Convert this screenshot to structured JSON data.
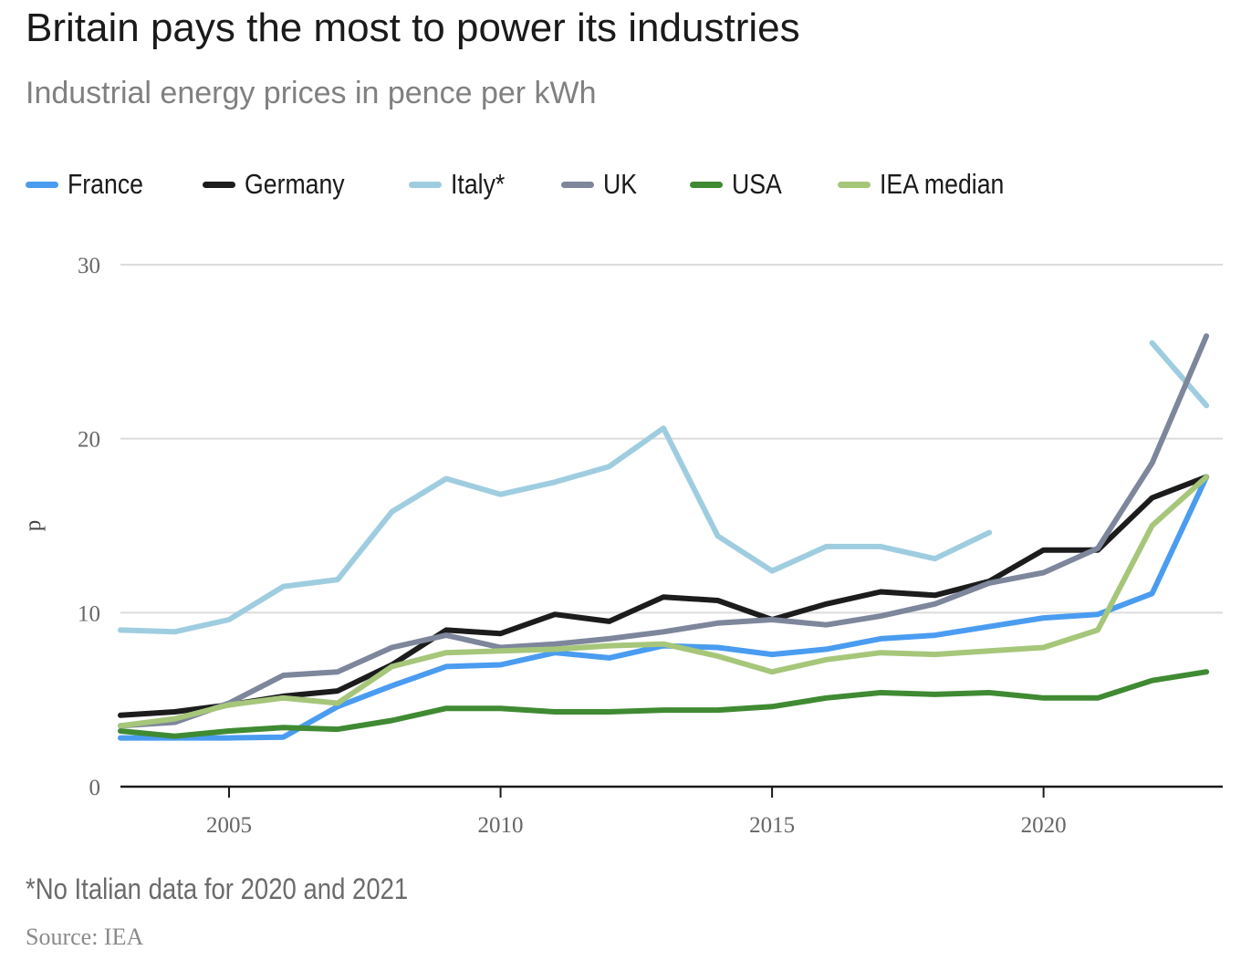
{
  "colors": {
    "France": "#4a9cf0",
    "Germany": "#1c1c1c",
    "Italy*": "#9fcde0",
    "UK": "#7d869b",
    "USA": "#3f8a32",
    "IEA median": "#a6c67a"
  },
  "chart_data": {
    "type": "line",
    "title": "Britain pays the most to power its industries",
    "subtitle": "Industrial energy prices in pence per kWh",
    "xlabel": "",
    "ylabel": "p",
    "x": [
      2003,
      2004,
      2005,
      2006,
      2007,
      2008,
      2009,
      2010,
      2011,
      2012,
      2013,
      2014,
      2015,
      2016,
      2017,
      2018,
      2019,
      2020,
      2021,
      2022,
      2023
    ],
    "xlim": [
      2003,
      2023.3
    ],
    "ylim": [
      0,
      30
    ],
    "xticks": [
      "2005",
      "2010",
      "2015",
      "2020"
    ],
    "yticks": [
      "0",
      "10",
      "20",
      "30"
    ],
    "grid": true,
    "legend_position": "top-left",
    "series": [
      {
        "name": "France",
        "values": [
          2.8,
          2.8,
          2.8,
          2.85,
          4.6,
          5.8,
          6.9,
          7.0,
          7.7,
          7.4,
          8.1,
          8.0,
          7.6,
          7.9,
          8.5,
          8.7,
          9.2,
          9.7,
          9.9,
          11.1,
          17.8
        ]
      },
      {
        "name": "Germany",
        "values": [
          4.1,
          4.3,
          4.7,
          5.2,
          5.5,
          7.0,
          9.0,
          8.8,
          9.9,
          9.5,
          10.9,
          10.7,
          9.6,
          10.5,
          11.2,
          11.0,
          11.8,
          13.6,
          13.6,
          16.6,
          17.8
        ]
      },
      {
        "name": "Italy*",
        "values": [
          9.0,
          8.9,
          9.6,
          11.5,
          11.9,
          15.8,
          17.7,
          16.8,
          17.5,
          18.4,
          20.6,
          14.4,
          12.4,
          13.8,
          13.8,
          13.1,
          14.6,
          null,
          null,
          25.5,
          21.9
        ]
      },
      {
        "name": "UK",
        "values": [
          3.5,
          3.7,
          4.8,
          6.4,
          6.6,
          8.0,
          8.7,
          8.0,
          8.2,
          8.5,
          8.9,
          9.4,
          9.6,
          9.3,
          9.8,
          10.5,
          11.7,
          12.3,
          13.7,
          18.6,
          25.9
        ]
      },
      {
        "name": "USA",
        "values": [
          3.2,
          2.9,
          3.2,
          3.4,
          3.3,
          3.8,
          4.5,
          4.5,
          4.3,
          4.3,
          4.4,
          4.4,
          4.6,
          5.1,
          5.4,
          5.3,
          5.4,
          5.1,
          5.1,
          6.1,
          6.6
        ]
      },
      {
        "name": "IEA median",
        "values": [
          3.5,
          3.9,
          4.7,
          5.1,
          4.8,
          6.9,
          7.7,
          7.8,
          7.9,
          8.1,
          8.2,
          7.5,
          6.6,
          7.3,
          7.7,
          7.6,
          7.8,
          8.0,
          9.0,
          15.0,
          17.8
        ]
      }
    ]
  },
  "legend": {
    "items": [
      "France",
      "Germany",
      "Italy*",
      "UK",
      "USA",
      "IEA median"
    ]
  },
  "footer": {
    "note": "*No Italian data for 2020 and 2021",
    "source": "Source: IEA"
  }
}
